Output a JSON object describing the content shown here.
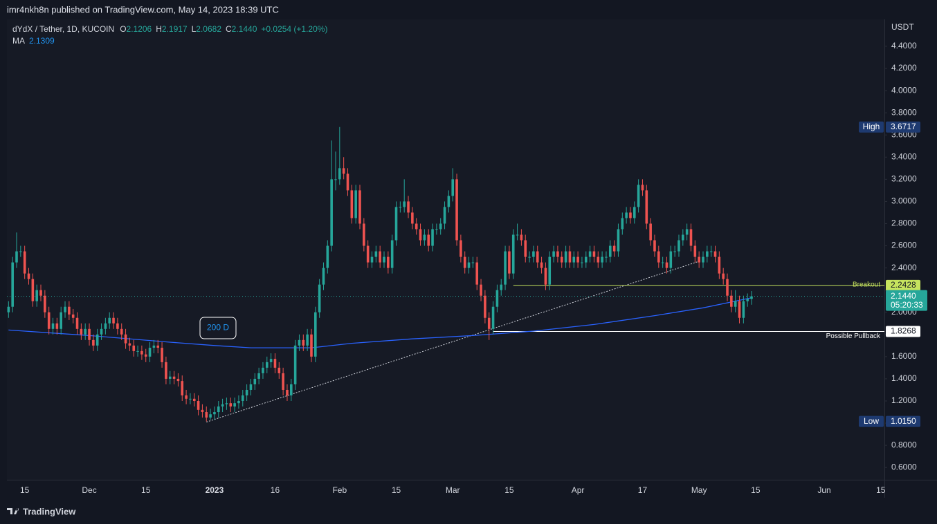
{
  "header": {
    "publisher": "imr4nkh8n published on TradingView.com, May 14, 2023 18:39 UTC",
    "brand": "TradingView"
  },
  "chart_data": {
    "type": "candlestick",
    "legend": {
      "symbol": "dYdX / Tether, 1D, KUCOIN",
      "fields": [
        {
          "key": "O",
          "value": "2.1206"
        },
        {
          "key": "H",
          "value": "2.1917"
        },
        {
          "key": "L",
          "value": "2.0682"
        },
        {
          "key": "C",
          "value": "2.1440"
        }
      ],
      "change": "+0.0254 (+1.20%)"
    },
    "axis_unit": "USDT",
    "up_color": "#26a69a",
    "down_color": "#ef5350",
    "grid": false,
    "xlim": [
      -0.4,
      216.9
    ],
    "xticks": [
      {
        "value": 4,
        "label": "15"
      },
      {
        "value": 20,
        "label": "Dec"
      },
      {
        "value": 34,
        "label": "15"
      },
      {
        "value": 51,
        "label": "2023"
      },
      {
        "value": 66,
        "label": "16"
      },
      {
        "value": 82,
        "label": "Feb"
      },
      {
        "value": 96,
        "label": "15"
      },
      {
        "value": 110,
        "label": "Mar"
      },
      {
        "value": 124,
        "label": "15"
      },
      {
        "value": 141,
        "label": "Apr"
      },
      {
        "value": 157,
        "label": "17"
      },
      {
        "value": 171,
        "label": "May"
      },
      {
        "value": 185,
        "label": "15"
      },
      {
        "value": 202,
        "label": "Jun"
      },
      {
        "value": 216,
        "label": "15"
      }
    ],
    "ylim": [
      0.489,
      4.643
    ],
    "yticks": [
      {
        "value": 0.6,
        "label": "0.6000"
      },
      {
        "value": 0.8,
        "label": "0.8000"
      },
      {
        "value": 1.0,
        "label": "1.0000"
      },
      {
        "value": 1.2,
        "label": "1.2000"
      },
      {
        "value": 1.4,
        "label": "1.4000"
      },
      {
        "value": 1.6,
        "label": "1.6000"
      },
      {
        "value": 1.8,
        "label": "1.8000"
      },
      {
        "value": 2.0,
        "label": "2.0000"
      },
      {
        "value": 2.2,
        "label": "2.2000"
      },
      {
        "value": 2.4,
        "label": "2.4000"
      },
      {
        "value": 2.6,
        "label": "2.6000"
      },
      {
        "value": 2.8,
        "label": "2.8000"
      },
      {
        "value": 3.0,
        "label": "3.0000"
      },
      {
        "value": 3.2,
        "label": "3.2000"
      },
      {
        "value": 3.4,
        "label": "3.4000"
      },
      {
        "value": 3.6,
        "label": "3.6000"
      },
      {
        "value": 3.8,
        "label": "3.8000"
      },
      {
        "value": 4.0,
        "label": "4.0000"
      },
      {
        "value": 4.2,
        "label": "4.2000"
      },
      {
        "value": 4.4,
        "label": "4.4000"
      }
    ],
    "open": [
      2.0,
      2.05,
      2.45,
      2.55,
      2.55,
      2.35,
      2.3,
      2.1,
      2.2,
      2.15,
      2.0,
      1.85,
      1.9,
      1.85,
      2.0,
      2.05,
      1.98,
      1.95,
      1.85,
      1.8,
      1.85,
      1.75,
      1.7,
      1.8,
      1.85,
      1.9,
      1.95,
      1.9,
      1.85,
      1.8,
      1.72,
      1.7,
      1.65,
      1.65,
      1.62,
      1.6,
      1.68,
      1.7,
      1.68,
      1.55,
      1.4,
      1.42,
      1.4,
      1.38,
      1.25,
      1.22,
      1.22,
      1.2,
      1.12,
      1.1,
      1.05,
      1.08,
      1.1,
      1.15,
      1.17,
      1.18,
      1.15,
      1.18,
      1.2,
      1.25,
      1.3,
      1.35,
      1.4,
      1.45,
      1.5,
      1.55,
      1.58,
      1.5,
      1.45,
      1.3,
      1.25,
      1.35,
      1.7,
      1.75,
      1.7,
      1.8,
      1.6,
      2.0,
      2.25,
      2.4,
      2.6,
      3.2,
      3.2,
      3.3,
      3.25,
      3.1,
      2.85,
      3.1,
      2.8,
      2.6,
      2.45,
      2.5,
      2.55,
      2.45,
      2.5,
      2.4,
      2.65,
      2.95,
      2.95,
      3.0,
      2.9,
      2.8,
      2.75,
      2.65,
      2.7,
      2.6,
      2.75,
      2.75,
      2.8,
      2.95,
      3.05,
      3.2,
      2.65,
      2.5,
      2.4,
      2.45,
      2.45,
      2.25,
      2.15,
      1.95,
      1.85,
      2.05,
      2.2,
      2.25,
      2.55,
      2.35,
      2.7,
      2.7,
      2.65,
      2.5,
      2.5,
      2.55,
      2.45,
      2.4,
      2.25,
      2.5,
      2.55,
      2.5,
      2.45,
      2.55,
      2.45,
      2.5,
      2.45,
      2.45,
      2.5,
      2.55,
      2.5,
      2.45,
      2.5,
      2.5,
      2.6,
      2.55,
      2.75,
      2.85,
      2.9,
      2.85,
      2.95,
      3.15,
      3.1,
      2.8,
      2.65,
      2.55,
      2.45,
      2.45,
      2.4,
      2.55,
      2.55,
      2.65,
      2.7,
      2.75,
      2.6,
      2.5,
      2.45,
      2.5,
      2.55,
      2.55,
      2.5,
      2.35,
      2.3,
      2.15,
      2.05,
      2.1,
      1.95,
      2.1,
      2.1206
    ],
    "high": [
      2.1,
      2.5,
      2.72,
      2.6,
      2.6,
      2.4,
      2.35,
      2.25,
      2.25,
      2.2,
      2.05,
      1.95,
      1.95,
      2.05,
      2.1,
      2.1,
      2.03,
      2.0,
      1.9,
      1.9,
      1.9,
      1.8,
      1.85,
      1.9,
      1.95,
      2.0,
      2.0,
      1.95,
      1.9,
      1.85,
      1.77,
      1.75,
      1.7,
      1.7,
      1.67,
      1.73,
      1.75,
      1.75,
      1.73,
      1.6,
      1.47,
      1.47,
      1.45,
      1.43,
      1.3,
      1.27,
      1.27,
      1.25,
      1.17,
      1.15,
      1.13,
      1.15,
      1.2,
      1.22,
      1.23,
      1.23,
      1.23,
      1.25,
      1.3,
      1.35,
      1.4,
      1.45,
      1.5,
      1.55,
      1.6,
      1.63,
      1.63,
      1.55,
      1.5,
      1.35,
      1.4,
      1.75,
      1.8,
      1.8,
      1.85,
      1.85,
      2.05,
      2.3,
      2.45,
      2.65,
      3.55,
      3.45,
      3.6717,
      3.4,
      3.3,
      3.15,
      3.15,
      3.15,
      2.85,
      2.65,
      2.55,
      2.6,
      2.6,
      2.55,
      2.55,
      2.7,
      3.0,
      3.0,
      3.2,
      3.05,
      2.95,
      2.85,
      2.8,
      2.75,
      2.75,
      2.8,
      2.8,
      2.85,
      3.0,
      3.1,
      3.3,
      3.25,
      2.7,
      2.55,
      2.5,
      2.5,
      2.5,
      2.3,
      2.2,
      2.0,
      2.1,
      2.25,
      2.3,
      2.6,
      2.6,
      2.75,
      2.8,
      2.75,
      2.7,
      2.55,
      2.6,
      2.6,
      2.5,
      2.45,
      2.55,
      2.6,
      2.6,
      2.55,
      2.6,
      2.6,
      2.55,
      2.55,
      2.5,
      2.55,
      2.6,
      2.6,
      2.55,
      2.55,
      2.55,
      2.65,
      2.65,
      2.8,
      2.9,
      2.95,
      2.95,
      3.0,
      3.2,
      3.2,
      3.15,
      2.85,
      2.7,
      2.6,
      2.5,
      2.5,
      2.6,
      2.6,
      2.7,
      2.75,
      2.8,
      2.8,
      2.65,
      2.55,
      2.55,
      2.6,
      2.6,
      2.6,
      2.55,
      2.4,
      2.35,
      2.2,
      2.2,
      2.15,
      2.15,
      2.17,
      2.1917
    ],
    "low": [
      1.95,
      2.0,
      2.4,
      2.5,
      2.3,
      2.25,
      2.05,
      2.05,
      2.1,
      1.95,
      1.8,
      1.8,
      1.8,
      1.8,
      1.95,
      1.93,
      1.9,
      1.8,
      1.75,
      1.75,
      1.7,
      1.65,
      1.65,
      1.75,
      1.8,
      1.85,
      1.85,
      1.8,
      1.75,
      1.67,
      1.65,
      1.6,
      1.6,
      1.57,
      1.55,
      1.55,
      1.63,
      1.63,
      1.5,
      1.35,
      1.35,
      1.35,
      1.33,
      1.2,
      1.17,
      1.17,
      1.15,
      1.07,
      1.05,
      1.015,
      1.03,
      1.03,
      1.05,
      1.1,
      1.12,
      1.1,
      1.1,
      1.13,
      1.15,
      1.2,
      1.25,
      1.3,
      1.35,
      1.4,
      1.45,
      1.5,
      1.45,
      1.4,
      1.25,
      1.2,
      1.2,
      1.3,
      1.65,
      1.65,
      1.65,
      1.55,
      1.55,
      1.95,
      2.2,
      2.35,
      2.55,
      3.1,
      3.15,
      3.2,
      3.05,
      2.8,
      2.8,
      2.75,
      2.55,
      2.4,
      2.4,
      2.45,
      2.4,
      2.4,
      2.35,
      2.35,
      2.6,
      2.9,
      2.9,
      2.85,
      2.75,
      2.7,
      2.6,
      2.6,
      2.55,
      2.55,
      2.7,
      2.7,
      2.75,
      2.9,
      3.0,
      2.6,
      2.45,
      2.35,
      2.35,
      2.4,
      2.2,
      2.1,
      1.9,
      1.75,
      1.8,
      2.0,
      2.15,
      2.2,
      2.3,
      2.3,
      2.65,
      2.6,
      2.45,
      2.45,
      2.45,
      2.4,
      2.35,
      2.2,
      2.2,
      2.45,
      2.45,
      2.4,
      2.4,
      2.4,
      2.4,
      2.4,
      2.4,
      2.4,
      2.45,
      2.45,
      2.4,
      2.4,
      2.45,
      2.45,
      2.5,
      2.5,
      2.7,
      2.8,
      2.8,
      2.8,
      2.9,
      3.05,
      2.75,
      2.6,
      2.5,
      2.4,
      2.4,
      2.35,
      2.35,
      2.5,
      2.5,
      2.6,
      2.65,
      2.55,
      2.45,
      2.4,
      2.4,
      2.45,
      2.5,
      2.45,
      2.3,
      2.25,
      2.1,
      2.0,
      2.0,
      1.9,
      1.9,
      2.05,
      2.0682
    ],
    "close": [
      2.05,
      2.45,
      2.55,
      2.55,
      2.35,
      2.3,
      2.1,
      2.2,
      2.15,
      2.0,
      1.85,
      1.9,
      1.85,
      2.0,
      2.05,
      1.98,
      1.95,
      1.85,
      1.8,
      1.85,
      1.75,
      1.7,
      1.8,
      1.85,
      1.9,
      1.95,
      1.9,
      1.85,
      1.8,
      1.72,
      1.7,
      1.65,
      1.65,
      1.62,
      1.6,
      1.68,
      1.7,
      1.68,
      1.55,
      1.4,
      1.42,
      1.4,
      1.38,
      1.25,
      1.22,
      1.22,
      1.2,
      1.12,
      1.1,
      1.05,
      1.08,
      1.1,
      1.15,
      1.17,
      1.18,
      1.15,
      1.18,
      1.2,
      1.25,
      1.3,
      1.35,
      1.4,
      1.45,
      1.5,
      1.55,
      1.58,
      1.5,
      1.45,
      1.3,
      1.25,
      1.35,
      1.7,
      1.75,
      1.7,
      1.8,
      1.6,
      2.0,
      2.25,
      2.4,
      2.6,
      3.2,
      3.2,
      3.3,
      3.25,
      3.1,
      2.85,
      3.1,
      2.8,
      2.6,
      2.45,
      2.5,
      2.55,
      2.45,
      2.5,
      2.4,
      2.65,
      2.95,
      2.95,
      3.0,
      2.9,
      2.8,
      2.75,
      2.65,
      2.7,
      2.6,
      2.75,
      2.75,
      2.8,
      2.95,
      3.05,
      3.2,
      2.65,
      2.5,
      2.4,
      2.45,
      2.45,
      2.25,
      2.15,
      1.95,
      1.85,
      2.05,
      2.2,
      2.25,
      2.55,
      2.35,
      2.7,
      2.7,
      2.65,
      2.5,
      2.5,
      2.55,
      2.45,
      2.4,
      2.25,
      2.5,
      2.55,
      2.5,
      2.45,
      2.55,
      2.45,
      2.5,
      2.45,
      2.45,
      2.5,
      2.55,
      2.5,
      2.45,
      2.5,
      2.5,
      2.6,
      2.55,
      2.75,
      2.85,
      2.9,
      2.85,
      2.95,
      3.15,
      3.1,
      2.8,
      2.65,
      2.55,
      2.45,
      2.45,
      2.4,
      2.55,
      2.55,
      2.65,
      2.7,
      2.75,
      2.6,
      2.5,
      2.45,
      2.5,
      2.55,
      2.55,
      2.5,
      2.35,
      2.3,
      2.15,
      2.05,
      2.1,
      1.95,
      2.1,
      2.1206,
      2.144
    ],
    "ma": {
      "name": "MA",
      "legend_value": "2.1309",
      "label": "200 D",
      "color": "#2962ff",
      "x": [
        0,
        20,
        40,
        51,
        60,
        75,
        85,
        100,
        115,
        130,
        145,
        160,
        172,
        184
      ],
      "values": [
        1.84,
        1.79,
        1.73,
        1.7,
        1.68,
        1.68,
        1.72,
        1.76,
        1.79,
        1.83,
        1.89,
        1.97,
        2.04,
        2.1309
      ]
    },
    "trendline": {
      "x": [
        49,
        171
      ],
      "values": [
        1.01,
        2.46
      ],
      "color": "#d1d4dc"
    },
    "high_mark": {
      "label": "High",
      "value": 3.6717
    },
    "low_mark": {
      "label": "Low",
      "value": 1.015,
      "value_label": "1.0150"
    },
    "breakout": {
      "label": "Breakout",
      "value": 2.2428,
      "start": 125,
      "color": "#c6e35e"
    },
    "pullback": {
      "label": "Possible Pullback",
      "value": 1.8268,
      "start": 120,
      "color": "#ffffff"
    },
    "last": {
      "value": 2.144,
      "value_label": "2.1440",
      "countdown": "05:20:33"
    }
  }
}
